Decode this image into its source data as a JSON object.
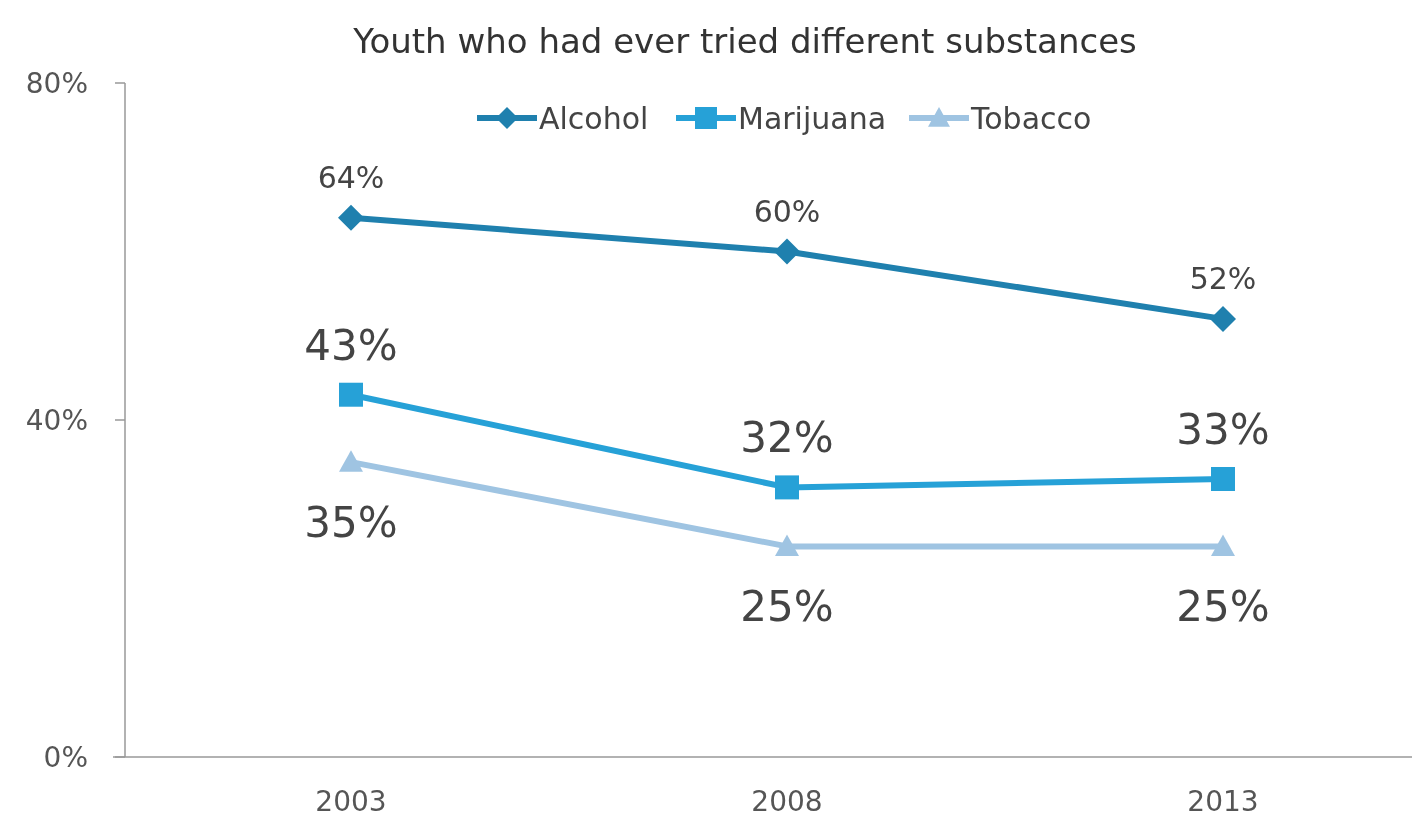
{
  "chart_data": {
    "type": "line",
    "title": "Youth who had ever tried different substances",
    "categories": [
      "2003",
      "2008",
      "2013"
    ],
    "series": [
      {
        "name": "Alcohol",
        "color": "#1f80ae",
        "marker": "diamond",
        "values": [
          64,
          60,
          52
        ],
        "value_labels": [
          "64%",
          "60%",
          "52%"
        ]
      },
      {
        "name": "Marijuana",
        "color": "#26a1d7",
        "marker": "square",
        "values": [
          43,
          32,
          33
        ],
        "value_labels": [
          "43%",
          "32%",
          "33%"
        ]
      },
      {
        "name": "Tobacco",
        "color": "#9fc4e2",
        "marker": "triangle",
        "values": [
          35,
          25,
          25
        ],
        "value_labels": [
          "35%",
          "25%",
          "25%"
        ]
      }
    ],
    "ylim": [
      0,
      80
    ],
    "yticks": [
      {
        "value": 0,
        "label": "0%"
      },
      {
        "value": 40,
        "label": "40%"
      },
      {
        "value": 80,
        "label": "80%"
      }
    ],
    "grid": false,
    "legend": "top"
  }
}
